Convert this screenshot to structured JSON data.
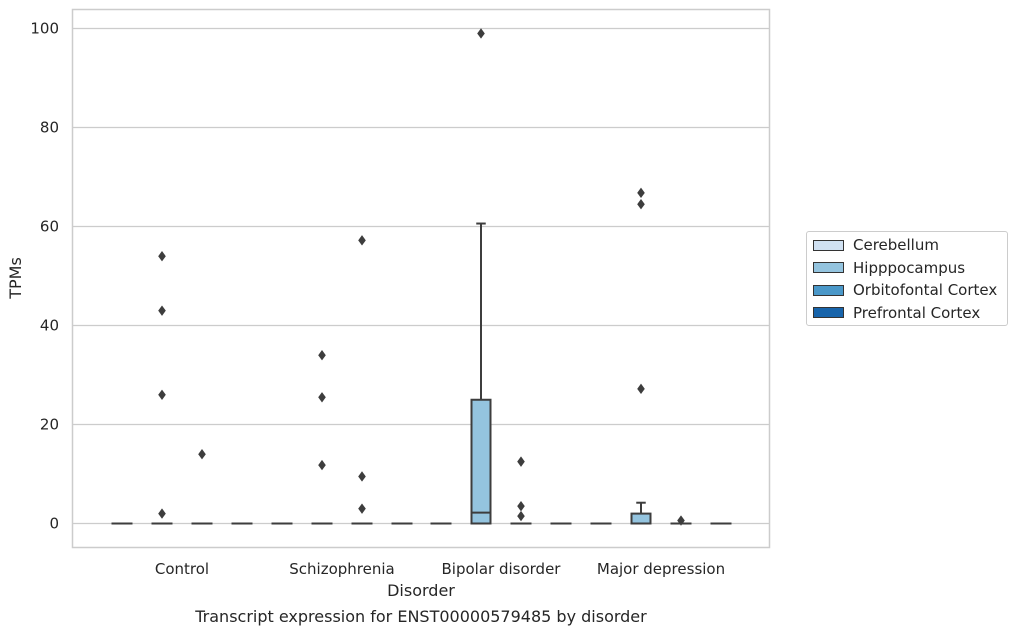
{
  "chart_data": {
    "type": "boxplot",
    "caption": "Transcript expression for ENST00000579485 by disorder",
    "xlabel": "Disorder",
    "ylabel": "TPMs",
    "ylim": [
      -5,
      104
    ],
    "yticks": [
      0,
      20,
      40,
      60,
      80,
      100
    ],
    "grid": "horizontal",
    "legend_placement": "right",
    "categories": [
      "Control",
      "Schizophrenia",
      "Bipolar disorder",
      "Major depression"
    ],
    "series": [
      {
        "name": "Cerebellum",
        "color": "#d0e1f2"
      },
      {
        "name": "Hipppocampus",
        "color": "#94c4df"
      },
      {
        "name": "Orbitofontal Cortex",
        "color": "#4a98c9"
      },
      {
        "name": "Prefrontal Cortex",
        "color": "#1764ab"
      }
    ],
    "boxes": [
      {
        "category": 0,
        "series": 0,
        "q1": 0,
        "median": 0,
        "q3": 0,
        "whisker_low": 0,
        "whisker_high": 0,
        "outliers": []
      },
      {
        "category": 0,
        "series": 1,
        "q1": 0,
        "median": 0,
        "q3": 0,
        "whisker_low": 0,
        "whisker_high": 0,
        "outliers": [
          54,
          43,
          26,
          2
        ]
      },
      {
        "category": 0,
        "series": 2,
        "q1": 0,
        "median": 0,
        "q3": 0,
        "whisker_low": 0,
        "whisker_high": 0,
        "outliers": [
          14
        ]
      },
      {
        "category": 0,
        "series": 3,
        "q1": 0,
        "median": 0,
        "q3": 0,
        "whisker_low": 0,
        "whisker_high": 0,
        "outliers": []
      },
      {
        "category": 1,
        "series": 0,
        "q1": 0,
        "median": 0,
        "q3": 0,
        "whisker_low": 0,
        "whisker_high": 0,
        "outliers": []
      },
      {
        "category": 1,
        "series": 1,
        "q1": 0,
        "median": 0,
        "q3": 0,
        "whisker_low": 0,
        "whisker_high": 0,
        "outliers": [
          34,
          25.5,
          11.8
        ]
      },
      {
        "category": 1,
        "series": 2,
        "q1": 0,
        "median": 0,
        "q3": 0,
        "whisker_low": 0,
        "whisker_high": 0,
        "outliers": [
          57.2,
          9.5,
          3
        ]
      },
      {
        "category": 1,
        "series": 3,
        "q1": 0,
        "median": 0,
        "q3": 0,
        "whisker_low": 0,
        "whisker_high": 0,
        "outliers": []
      },
      {
        "category": 2,
        "series": 0,
        "q1": 0,
        "median": 0,
        "q3": 0,
        "whisker_low": 0,
        "whisker_high": 0,
        "outliers": []
      },
      {
        "category": 2,
        "series": 1,
        "q1": 0,
        "median": 2.2,
        "q3": 25,
        "whisker_low": 0,
        "whisker_high": 60.6,
        "outliers": [
          99
        ]
      },
      {
        "category": 2,
        "series": 2,
        "q1": 0,
        "median": 0,
        "q3": 0,
        "whisker_low": 0,
        "whisker_high": 0,
        "outliers": [
          12.5,
          3.5,
          1.5
        ]
      },
      {
        "category": 2,
        "series": 3,
        "q1": 0,
        "median": 0,
        "q3": 0,
        "whisker_low": 0,
        "whisker_high": 0,
        "outliers": []
      },
      {
        "category": 3,
        "series": 0,
        "q1": 0,
        "median": 0,
        "q3": 0,
        "whisker_low": 0,
        "whisker_high": 0,
        "outliers": []
      },
      {
        "category": 3,
        "series": 1,
        "q1": 0,
        "median": 0,
        "q3": 2,
        "whisker_low": 0,
        "whisker_high": 4.2,
        "outliers": [
          66.8,
          64.5,
          27.2
        ]
      },
      {
        "category": 3,
        "series": 2,
        "q1": 0,
        "median": 0,
        "q3": 0,
        "whisker_low": 0,
        "whisker_high": 0,
        "outliers": [
          0.6
        ]
      },
      {
        "category": 3,
        "series": 3,
        "q1": 0,
        "median": 0,
        "q3": 0,
        "whisker_low": 0,
        "whisker_high": 0,
        "outliers": []
      }
    ]
  }
}
